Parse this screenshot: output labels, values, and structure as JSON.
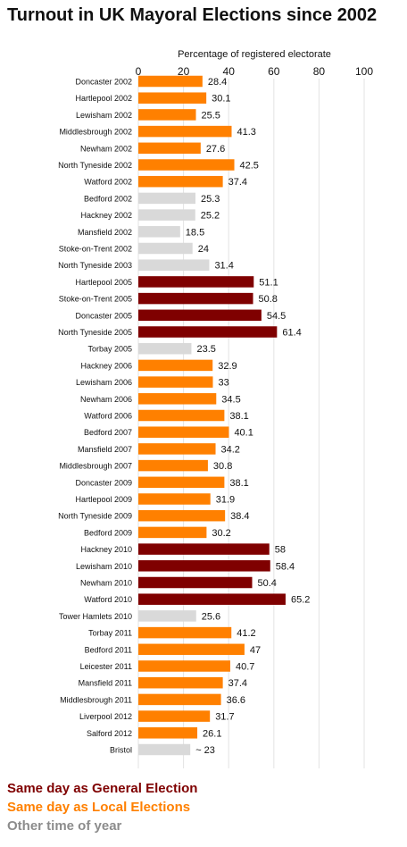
{
  "title": "Turnout in UK Mayoral Elections since 2002",
  "colors": {
    "general": "#7f0000",
    "local": "#ff8000",
    "other": "#d9d9d9",
    "grid": "#e3e3e3",
    "text": "#111111",
    "legend_other": "#8c8c8c"
  },
  "legend": [
    {
      "label": "Same day as General Election",
      "key": "general"
    },
    {
      "label": "Same day as Local Elections",
      "key": "local"
    },
    {
      "label": "Other time of year",
      "key": "other"
    }
  ],
  "chart_data": {
    "type": "bar",
    "orientation": "horizontal",
    "title": "Turnout in UK Mayoral Elections since 2002",
    "xlabel": "Percentage of registered electorate",
    "xlim": [
      0,
      100
    ],
    "xticks": [
      0,
      20,
      40,
      60,
      80,
      100
    ],
    "grid": true,
    "categories": [
      "Doncaster 2002",
      "Hartlepool 2002",
      "Lewisham 2002",
      "Middlesbrough 2002",
      "Newham 2002",
      "North Tyneside 2002",
      "Watford 2002",
      "Bedford 2002",
      "Hackney 2002",
      "Mansfield 2002",
      "Stoke-on-Trent 2002",
      "North Tyneside 2003",
      "Hartlepool 2005",
      "Stoke-on-Trent 2005",
      "Doncaster 2005",
      "North Tyneside 2005",
      "Torbay 2005",
      "Hackney 2006",
      "Lewisham 2006",
      "Newham 2006",
      "Watford 2006",
      "Bedford 2007",
      "Mansfield 2007",
      "Middlesbrough 2007",
      "Doncaster 2009",
      "Hartlepool 2009",
      "North Tyneside 2009",
      "Bedford 2009",
      "Hackney 2010",
      "Lewisham 2010",
      "Newham 2010",
      "Watford 2010",
      "Tower Hamlets 2010",
      "Torbay 2011",
      "Bedford 2011",
      "Leicester 2011",
      "Mansfield 2011",
      "Middlesbrough 2011",
      "Liverpool 2012",
      "Salford 2012",
      "Bristol"
    ],
    "values": [
      28.4,
      30.1,
      25.5,
      41.3,
      27.6,
      42.5,
      37.4,
      25.3,
      25.2,
      18.5,
      24,
      31.4,
      51.1,
      50.8,
      54.5,
      61.4,
      23.5,
      32.9,
      33,
      34.5,
      38.1,
      40.1,
      34.2,
      30.8,
      38.1,
      31.9,
      38.4,
      30.2,
      58,
      58.4,
      50.4,
      65.2,
      25.6,
      41.2,
      47,
      40.7,
      37.4,
      36.6,
      31.7,
      26.1,
      23
    ],
    "value_labels": [
      "28.4",
      "30.1",
      "25.5",
      "41.3",
      "27.6",
      "42.5",
      "37.4",
      "25.3",
      "25.2",
      "18.5",
      "24",
      "31.4",
      "51.1",
      "50.8",
      "54.5",
      "61.4",
      "23.5",
      "32.9",
      "33",
      "34.5",
      "38.1",
      "40.1",
      "34.2",
      "30.8",
      "38.1",
      "31.9",
      "38.4",
      "30.2",
      "58",
      "58.4",
      "50.4",
      "65.2",
      "25.6",
      "41.2",
      "47",
      "40.7",
      "37.4",
      "36.6",
      "31.7",
      "26.1",
      "~ 23"
    ],
    "groups": [
      "local",
      "local",
      "local",
      "local",
      "local",
      "local",
      "local",
      "other",
      "other",
      "other",
      "other",
      "other",
      "general",
      "general",
      "general",
      "general",
      "other",
      "local",
      "local",
      "local",
      "local",
      "local",
      "local",
      "local",
      "local",
      "local",
      "local",
      "local",
      "general",
      "general",
      "general",
      "general",
      "other",
      "local",
      "local",
      "local",
      "local",
      "local",
      "local",
      "local",
      "other"
    ]
  }
}
